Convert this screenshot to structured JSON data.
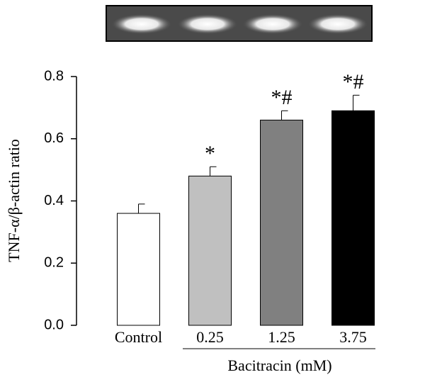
{
  "chart_data": {
    "type": "bar",
    "ylabel": "TNF-α/β-actin ratio",
    "xlabel": "Bacitracin (mM)",
    "categories": [
      "Control",
      "0.25",
      "1.25",
      "3.75"
    ],
    "values": [
      0.36,
      0.48,
      0.66,
      0.69
    ],
    "errors": [
      0.03,
      0.03,
      0.03,
      0.05
    ],
    "colors": [
      "#ffffff",
      "#c0c0c0",
      "#808080",
      "#000000"
    ],
    "annotations": [
      {
        "category": "0.25",
        "text": "*"
      },
      {
        "category": "1.25",
        "text": "*#"
      },
      {
        "category": "3.75",
        "text": "*#"
      }
    ],
    "ylim": [
      0,
      0.8
    ],
    "yticks": [
      {
        "value": 0,
        "label": "0.0"
      },
      {
        "value": 0.2,
        "label": "0.2"
      },
      {
        "value": 0.4,
        "label": "0.4"
      },
      {
        "value": 0.6,
        "label": "0.6"
      },
      {
        "value": 0.8,
        "label": "0.8"
      }
    ],
    "grid": false
  }
}
